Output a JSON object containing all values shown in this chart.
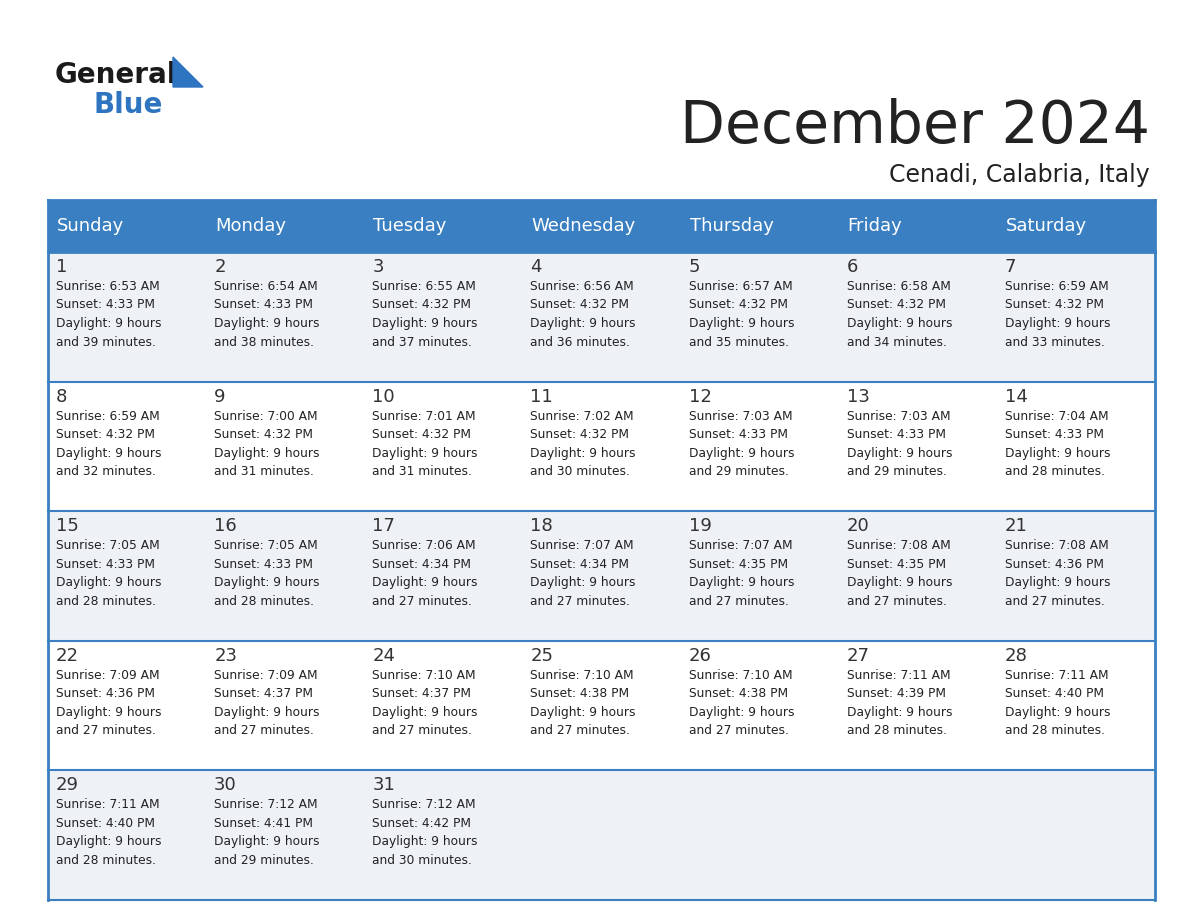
{
  "title": "December 2024",
  "subtitle": "Cenadi, Calabria, Italy",
  "days_of_week": [
    "Sunday",
    "Monday",
    "Tuesday",
    "Wednesday",
    "Thursday",
    "Friday",
    "Saturday"
  ],
  "header_bg": "#3a7fc1",
  "header_text": "#ffffff",
  "row_bg_odd": "#eef2f7",
  "row_bg_even": "#ffffff",
  "border_color": "#3a7fc1",
  "text_color": "#222222",
  "day_number_color": "#333333",
  "calendar_data": [
    {
      "day": 1,
      "col": 0,
      "row": 0,
      "sunrise": "6:53 AM",
      "sunset": "4:33 PM",
      "daylight": "9 hours and 39 minutes."
    },
    {
      "day": 2,
      "col": 1,
      "row": 0,
      "sunrise": "6:54 AM",
      "sunset": "4:33 PM",
      "daylight": "9 hours and 38 minutes."
    },
    {
      "day": 3,
      "col": 2,
      "row": 0,
      "sunrise": "6:55 AM",
      "sunset": "4:32 PM",
      "daylight": "9 hours and 37 minutes."
    },
    {
      "day": 4,
      "col": 3,
      "row": 0,
      "sunrise": "6:56 AM",
      "sunset": "4:32 PM",
      "daylight": "9 hours and 36 minutes."
    },
    {
      "day": 5,
      "col": 4,
      "row": 0,
      "sunrise": "6:57 AM",
      "sunset": "4:32 PM",
      "daylight": "9 hours and 35 minutes."
    },
    {
      "day": 6,
      "col": 5,
      "row": 0,
      "sunrise": "6:58 AM",
      "sunset": "4:32 PM",
      "daylight": "9 hours and 34 minutes."
    },
    {
      "day": 7,
      "col": 6,
      "row": 0,
      "sunrise": "6:59 AM",
      "sunset": "4:32 PM",
      "daylight": "9 hours and 33 minutes."
    },
    {
      "day": 8,
      "col": 0,
      "row": 1,
      "sunrise": "6:59 AM",
      "sunset": "4:32 PM",
      "daylight": "9 hours and 32 minutes."
    },
    {
      "day": 9,
      "col": 1,
      "row": 1,
      "sunrise": "7:00 AM",
      "sunset": "4:32 PM",
      "daylight": "9 hours and 31 minutes."
    },
    {
      "day": 10,
      "col": 2,
      "row": 1,
      "sunrise": "7:01 AM",
      "sunset": "4:32 PM",
      "daylight": "9 hours and 31 minutes."
    },
    {
      "day": 11,
      "col": 3,
      "row": 1,
      "sunrise": "7:02 AM",
      "sunset": "4:32 PM",
      "daylight": "9 hours and 30 minutes."
    },
    {
      "day": 12,
      "col": 4,
      "row": 1,
      "sunrise": "7:03 AM",
      "sunset": "4:33 PM",
      "daylight": "9 hours and 29 minutes."
    },
    {
      "day": 13,
      "col": 5,
      "row": 1,
      "sunrise": "7:03 AM",
      "sunset": "4:33 PM",
      "daylight": "9 hours and 29 minutes."
    },
    {
      "day": 14,
      "col": 6,
      "row": 1,
      "sunrise": "7:04 AM",
      "sunset": "4:33 PM",
      "daylight": "9 hours and 28 minutes."
    },
    {
      "day": 15,
      "col": 0,
      "row": 2,
      "sunrise": "7:05 AM",
      "sunset": "4:33 PM",
      "daylight": "9 hours and 28 minutes."
    },
    {
      "day": 16,
      "col": 1,
      "row": 2,
      "sunrise": "7:05 AM",
      "sunset": "4:33 PM",
      "daylight": "9 hours and 28 minutes."
    },
    {
      "day": 17,
      "col": 2,
      "row": 2,
      "sunrise": "7:06 AM",
      "sunset": "4:34 PM",
      "daylight": "9 hours and 27 minutes."
    },
    {
      "day": 18,
      "col": 3,
      "row": 2,
      "sunrise": "7:07 AM",
      "sunset": "4:34 PM",
      "daylight": "9 hours and 27 minutes."
    },
    {
      "day": 19,
      "col": 4,
      "row": 2,
      "sunrise": "7:07 AM",
      "sunset": "4:35 PM",
      "daylight": "9 hours and 27 minutes."
    },
    {
      "day": 20,
      "col": 5,
      "row": 2,
      "sunrise": "7:08 AM",
      "sunset": "4:35 PM",
      "daylight": "9 hours and 27 minutes."
    },
    {
      "day": 21,
      "col": 6,
      "row": 2,
      "sunrise": "7:08 AM",
      "sunset": "4:36 PM",
      "daylight": "9 hours and 27 minutes."
    },
    {
      "day": 22,
      "col": 0,
      "row": 3,
      "sunrise": "7:09 AM",
      "sunset": "4:36 PM",
      "daylight": "9 hours and 27 minutes."
    },
    {
      "day": 23,
      "col": 1,
      "row": 3,
      "sunrise": "7:09 AM",
      "sunset": "4:37 PM",
      "daylight": "9 hours and 27 minutes."
    },
    {
      "day": 24,
      "col": 2,
      "row": 3,
      "sunrise": "7:10 AM",
      "sunset": "4:37 PM",
      "daylight": "9 hours and 27 minutes."
    },
    {
      "day": 25,
      "col": 3,
      "row": 3,
      "sunrise": "7:10 AM",
      "sunset": "4:38 PM",
      "daylight": "9 hours and 27 minutes."
    },
    {
      "day": 26,
      "col": 4,
      "row": 3,
      "sunrise": "7:10 AM",
      "sunset": "4:38 PM",
      "daylight": "9 hours and 27 minutes."
    },
    {
      "day": 27,
      "col": 5,
      "row": 3,
      "sunrise": "7:11 AM",
      "sunset": "4:39 PM",
      "daylight": "9 hours and 28 minutes."
    },
    {
      "day": 28,
      "col": 6,
      "row": 3,
      "sunrise": "7:11 AM",
      "sunset": "4:40 PM",
      "daylight": "9 hours and 28 minutes."
    },
    {
      "day": 29,
      "col": 0,
      "row": 4,
      "sunrise": "7:11 AM",
      "sunset": "4:40 PM",
      "daylight": "9 hours and 28 minutes."
    },
    {
      "day": 30,
      "col": 1,
      "row": 4,
      "sunrise": "7:12 AM",
      "sunset": "4:41 PM",
      "daylight": "9 hours and 29 minutes."
    },
    {
      "day": 31,
      "col": 2,
      "row": 4,
      "sunrise": "7:12 AM",
      "sunset": "4:42 PM",
      "daylight": "9 hours and 30 minutes."
    }
  ],
  "num_rows": 5,
  "num_cols": 7,
  "logo_general_color": "#1a1a1a",
  "logo_blue_color": "#2e74c0",
  "logo_triangle_color": "#2e74c0"
}
